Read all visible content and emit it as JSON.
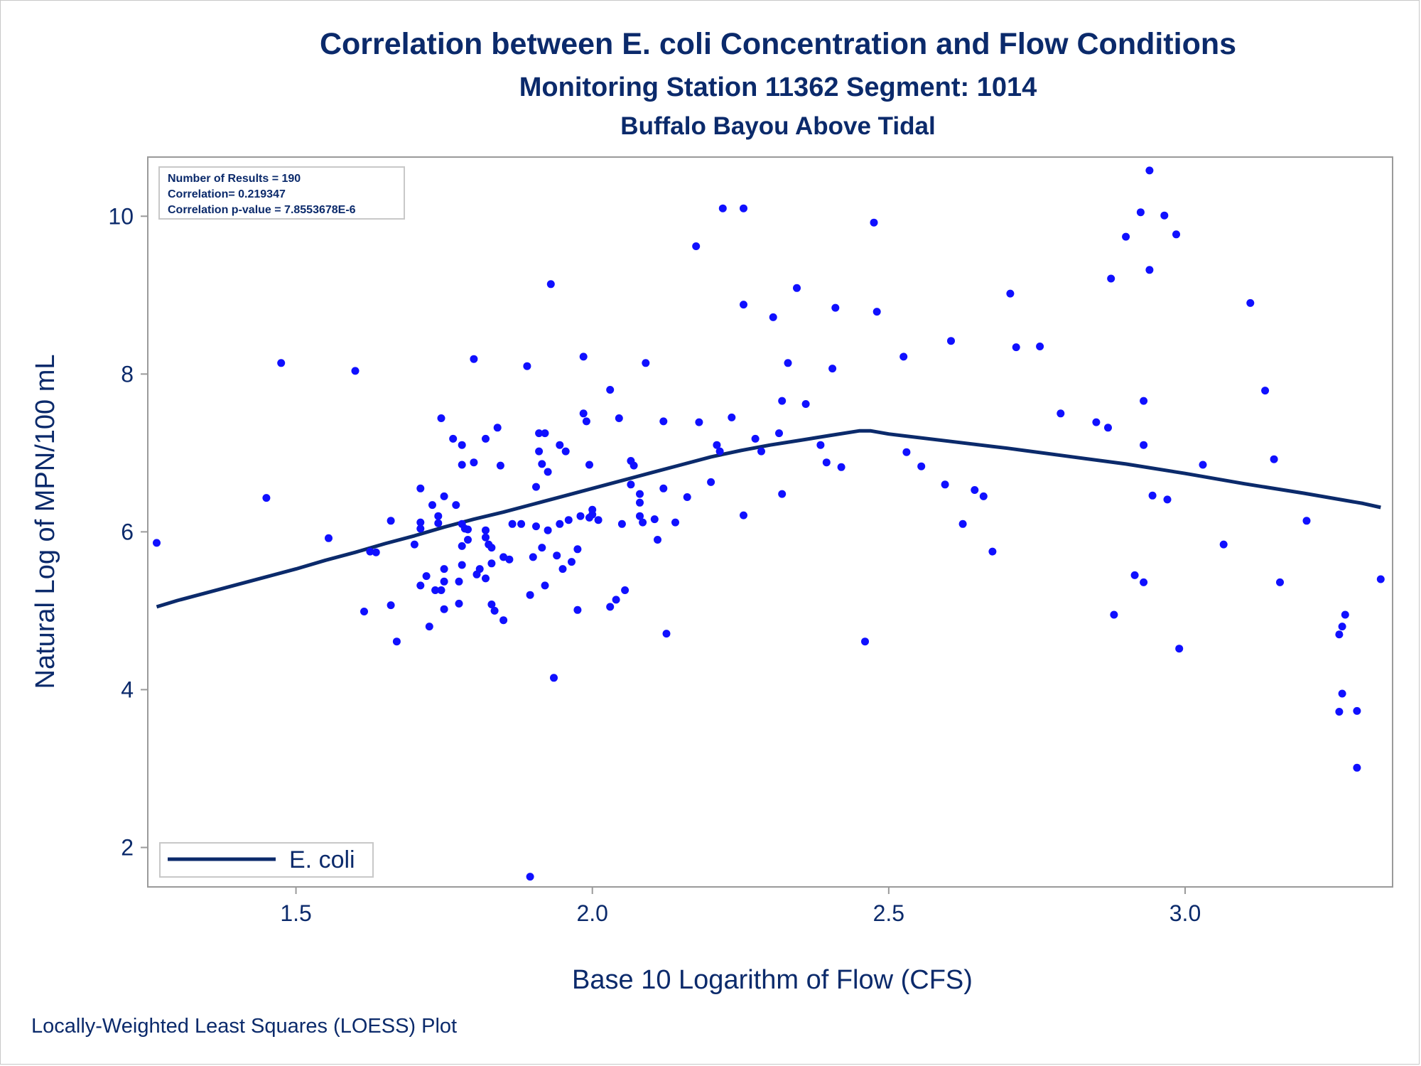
{
  "title": "Correlation between E. coli Concentration and Flow Conditions",
  "subtitle1": "Monitoring Station 11362 Segment: 1014",
  "subtitle2": "Buffalo Bayou Above Tidal",
  "footnote": "Locally-Weighted Least Squares (LOESS) Plot",
  "colors": {
    "text": "#0b2a6b",
    "points": "#1010ff",
    "line": "#0b2a6b",
    "frame": "#9a9a9a"
  },
  "chart_data": {
    "type": "scatter",
    "xlabel": "Base 10 Logarithm of Flow (CFS)",
    "ylabel": "Natural Log of MPN/100 mL",
    "xlim": [
      1.25,
      3.35
    ],
    "ylim": [
      1.5,
      10.75
    ],
    "xticks": [
      "1.5",
      "2.0",
      "2.5",
      "3.0"
    ],
    "yticks": [
      "2",
      "4",
      "6",
      "8",
      "10"
    ],
    "grid": false,
    "inset": {
      "lines": [
        "Number of Results = 190",
        "Correlation= 0.219347",
        "Correlation p-value = 7.8553678E-6"
      ],
      "placement": "top-left"
    },
    "legend": {
      "entries": [
        "E. coli"
      ],
      "placement": "bottom-left"
    },
    "series": [
      {
        "name": "E. coli",
        "kind": "loess-line",
        "x": [
          1.265,
          1.3,
          1.35,
          1.4,
          1.45,
          1.5,
          1.55,
          1.6,
          1.65,
          1.7,
          1.75,
          1.8,
          1.85,
          1.9,
          1.95,
          2.0,
          2.05,
          2.1,
          2.15,
          2.2,
          2.25,
          2.3,
          2.35,
          2.4,
          2.45,
          2.47,
          2.5,
          2.6,
          2.7,
          2.8,
          2.9,
          3.0,
          3.1,
          3.2,
          3.3,
          3.33
        ],
        "y": [
          5.05,
          5.13,
          5.23,
          5.33,
          5.43,
          5.53,
          5.64,
          5.74,
          5.85,
          5.95,
          6.06,
          6.16,
          6.25,
          6.35,
          6.45,
          6.55,
          6.65,
          6.75,
          6.85,
          6.95,
          7.03,
          7.1,
          7.16,
          7.22,
          7.28,
          7.28,
          7.24,
          7.15,
          7.06,
          6.96,
          6.86,
          6.74,
          6.61,
          6.49,
          6.36,
          6.31
        ]
      },
      {
        "name": "observations",
        "kind": "points",
        "points": [
          [
            1.265,
            5.86
          ],
          [
            1.45,
            6.43
          ],
          [
            1.475,
            8.14
          ],
          [
            1.555,
            5.92
          ],
          [
            1.6,
            8.04
          ],
          [
            1.615,
            4.99
          ],
          [
            1.625,
            5.75
          ],
          [
            1.635,
            5.74
          ],
          [
            1.66,
            6.14
          ],
          [
            1.66,
            5.07
          ],
          [
            1.67,
            4.61
          ],
          [
            1.7,
            5.84
          ],
          [
            1.71,
            6.55
          ],
          [
            1.71,
            6.12
          ],
          [
            1.71,
            6.04
          ],
          [
            1.71,
            5.32
          ],
          [
            1.72,
            5.44
          ],
          [
            1.725,
            4.8
          ],
          [
            1.73,
            6.34
          ],
          [
            1.735,
            5.26
          ],
          [
            1.74,
            6.2
          ],
          [
            1.74,
            6.11
          ],
          [
            1.745,
            7.44
          ],
          [
            1.745,
            5.26
          ],
          [
            1.75,
            6.45
          ],
          [
            1.75,
            5.53
          ],
          [
            1.75,
            5.37
          ],
          [
            1.75,
            5.02
          ],
          [
            1.765,
            7.18
          ],
          [
            1.77,
            6.34
          ],
          [
            1.775,
            5.37
          ],
          [
            1.775,
            5.09
          ],
          [
            1.78,
            7.1
          ],
          [
            1.78,
            6.85
          ],
          [
            1.78,
            6.1
          ],
          [
            1.78,
            5.82
          ],
          [
            1.78,
            5.58
          ],
          [
            1.785,
            6.04
          ],
          [
            1.79,
            5.9
          ],
          [
            1.79,
            6.03
          ],
          [
            1.8,
            8.19
          ],
          [
            1.8,
            6.88
          ],
          [
            1.805,
            5.46
          ],
          [
            1.81,
            5.53
          ],
          [
            1.82,
            7.18
          ],
          [
            1.82,
            6.02
          ],
          [
            1.82,
            5.93
          ],
          [
            1.82,
            5.41
          ],
          [
            1.825,
            5.84
          ],
          [
            1.83,
            5.8
          ],
          [
            1.83,
            5.6
          ],
          [
            1.83,
            5.08
          ],
          [
            1.835,
            5.0
          ],
          [
            1.84,
            7.32
          ],
          [
            1.845,
            6.84
          ],
          [
            1.85,
            5.68
          ],
          [
            1.85,
            4.88
          ],
          [
            1.86,
            5.65
          ],
          [
            1.865,
            6.1
          ],
          [
            1.88,
            6.1
          ],
          [
            1.89,
            8.1
          ],
          [
            1.895,
            5.2
          ],
          [
            1.9,
            5.68
          ],
          [
            1.905,
            6.57
          ],
          [
            1.905,
            6.07
          ],
          [
            1.91,
            7.25
          ],
          [
            1.91,
            7.02
          ],
          [
            1.915,
            6.86
          ],
          [
            1.915,
            5.8
          ],
          [
            1.92,
            7.25
          ],
          [
            1.92,
            5.32
          ],
          [
            1.925,
            6.76
          ],
          [
            1.925,
            6.02
          ],
          [
            1.93,
            9.14
          ],
          [
            1.935,
            4.15
          ],
          [
            1.94,
            5.7
          ],
          [
            1.945,
            7.1
          ],
          [
            1.945,
            6.1
          ],
          [
            1.95,
            5.53
          ],
          [
            1.955,
            7.02
          ],
          [
            1.96,
            6.15
          ],
          [
            1.965,
            5.62
          ],
          [
            1.975,
            5.78
          ],
          [
            1.975,
            5.01
          ],
          [
            1.98,
            6.2
          ],
          [
            1.985,
            7.5
          ],
          [
            1.985,
            8.22
          ],
          [
            1.99,
            7.4
          ],
          [
            1.995,
            6.85
          ],
          [
            1.995,
            6.18
          ],
          [
            2.0,
            6.28
          ],
          [
            2.0,
            6.22
          ],
          [
            2.01,
            6.15
          ],
          [
            2.03,
            7.8
          ],
          [
            2.03,
            5.05
          ],
          [
            2.04,
            5.14
          ],
          [
            2.045,
            7.44
          ],
          [
            2.05,
            6.1
          ],
          [
            2.055,
            5.26
          ],
          [
            2.065,
            6.9
          ],
          [
            2.065,
            6.6
          ],
          [
            2.07,
            6.84
          ],
          [
            2.08,
            6.48
          ],
          [
            2.08,
            6.37
          ],
          [
            2.08,
            6.2
          ],
          [
            2.085,
            6.12
          ],
          [
            2.09,
            8.14
          ],
          [
            2.105,
            6.16
          ],
          [
            2.11,
            5.9
          ],
          [
            2.12,
            7.4
          ],
          [
            2.12,
            6.55
          ],
          [
            2.125,
            4.71
          ],
          [
            2.14,
            6.12
          ],
          [
            2.16,
            6.44
          ],
          [
            2.175,
            9.62
          ],
          [
            2.18,
            7.39
          ],
          [
            2.2,
            6.63
          ],
          [
            2.21,
            7.1
          ],
          [
            2.215,
            7.02
          ],
          [
            2.22,
            10.1
          ],
          [
            2.235,
            7.45
          ],
          [
            2.255,
            10.1
          ],
          [
            2.255,
            8.88
          ],
          [
            2.255,
            6.21
          ],
          [
            2.275,
            7.18
          ],
          [
            2.285,
            7.02
          ],
          [
            2.305,
            8.72
          ],
          [
            2.315,
            7.25
          ],
          [
            2.32,
            7.66
          ],
          [
            2.32,
            6.48
          ],
          [
            2.33,
            8.14
          ],
          [
            2.345,
            9.09
          ],
          [
            2.36,
            7.62
          ],
          [
            2.385,
            7.1
          ],
          [
            2.395,
            6.88
          ],
          [
            2.405,
            8.07
          ],
          [
            2.41,
            8.84
          ],
          [
            2.42,
            6.82
          ],
          [
            2.46,
            4.61
          ],
          [
            2.475,
            9.92
          ],
          [
            2.48,
            8.79
          ],
          [
            2.525,
            8.22
          ],
          [
            2.53,
            7.01
          ],
          [
            2.555,
            6.83
          ],
          [
            2.595,
            6.6
          ],
          [
            2.605,
            8.42
          ],
          [
            2.625,
            6.1
          ],
          [
            2.645,
            6.53
          ],
          [
            2.66,
            6.45
          ],
          [
            2.675,
            5.75
          ],
          [
            2.705,
            9.02
          ],
          [
            2.715,
            8.34
          ],
          [
            2.755,
            8.35
          ],
          [
            2.79,
            7.5
          ],
          [
            2.85,
            7.39
          ],
          [
            2.87,
            7.32
          ],
          [
            2.875,
            9.21
          ],
          [
            2.88,
            4.95
          ],
          [
            2.9,
            9.74
          ],
          [
            2.915,
            5.45
          ],
          [
            2.925,
            10.05
          ],
          [
            2.93,
            7.66
          ],
          [
            2.93,
            7.1
          ],
          [
            2.93,
            5.36
          ],
          [
            2.94,
            9.32
          ],
          [
            2.94,
            10.58
          ],
          [
            2.945,
            6.46
          ],
          [
            2.965,
            10.01
          ],
          [
            2.97,
            6.41
          ],
          [
            2.985,
            9.77
          ],
          [
            2.99,
            4.52
          ],
          [
            3.03,
            6.85
          ],
          [
            3.065,
            5.84
          ],
          [
            3.11,
            8.9
          ],
          [
            3.135,
            7.79
          ],
          [
            3.15,
            6.92
          ],
          [
            3.16,
            5.36
          ],
          [
            3.205,
            6.14
          ],
          [
            3.26,
            4.7
          ],
          [
            3.26,
            3.72
          ],
          [
            3.265,
            4.8
          ],
          [
            3.265,
            3.95
          ],
          [
            3.27,
            4.95
          ],
          [
            3.29,
            3.73
          ],
          [
            3.29,
            3.01
          ],
          [
            3.33,
            5.4
          ],
          [
            1.895,
            1.63
          ]
        ]
      }
    ]
  }
}
